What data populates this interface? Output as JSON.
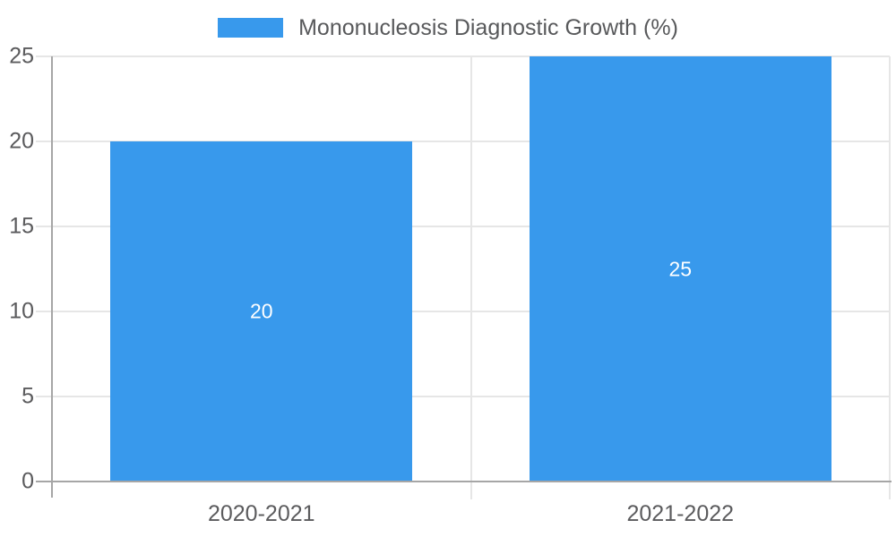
{
  "chart_data": {
    "type": "bar",
    "title": "",
    "legend": {
      "label": "Mononucleosis Diagnostic Growth (%)",
      "position": "top"
    },
    "categories": [
      "2020-2021",
      "2021-2022"
    ],
    "series": [
      {
        "name": "Mononucleosis Diagnostic Growth (%)",
        "values": [
          20,
          25
        ]
      }
    ],
    "data_labels": [
      "20",
      "25"
    ],
    "xlabel": "",
    "ylabel": "",
    "ylim": [
      0,
      25
    ],
    "yticks": [
      0,
      5,
      10,
      15,
      20,
      25
    ],
    "grid": "horizontal gridlines at y ticks; vertical gridlines at category boundaries",
    "bar_width_fraction": 0.72,
    "colors": {
      "bar": "#3899ec",
      "gridline": "#e6e6e6",
      "axis": "#a6a6a6",
      "tick_label_text": "#5b5b5d",
      "legend_text": "#58595b",
      "bar_label_text": "#ffffff",
      "background": "#ffffff"
    }
  }
}
